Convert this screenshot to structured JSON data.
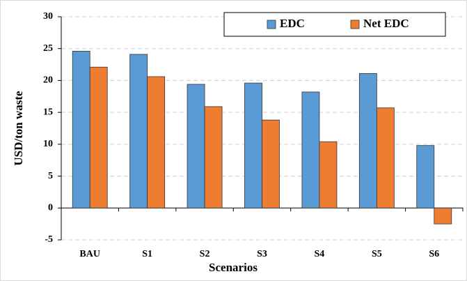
{
  "chart_data": {
    "type": "bar",
    "x_label": "Scenarios",
    "y_label": "USD/ton waste",
    "categories": [
      "BAU",
      "S1",
      "S2",
      "S3",
      "S4",
      "S5",
      "S6"
    ],
    "series": [
      {
        "name": "EDC",
        "color": "#5b9bd5",
        "values": [
          24.6,
          24.1,
          19.4,
          19.6,
          18.2,
          21.1,
          9.8
        ]
      },
      {
        "name": "Net EDC",
        "color": "#ed7d31",
        "values": [
          22.1,
          20.6,
          15.9,
          13.8,
          10.4,
          15.7,
          -2.5
        ]
      }
    ],
    "ylim": [
      -5,
      30
    ],
    "yticks": [
      -5,
      0,
      5,
      10,
      15,
      20,
      25,
      30
    ],
    "grid": true,
    "legend": "upper right"
  }
}
